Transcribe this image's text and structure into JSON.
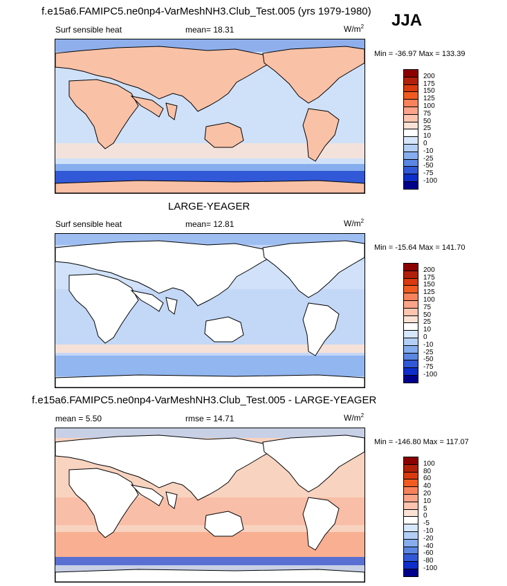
{
  "season": "JJA",
  "panels": [
    {
      "title": "f.e15a6.FAMIPC5.ne0np4-VarMeshNH3.Club_Test.005 (yrs 1979-1980)",
      "left_label": "Surf sensible heat",
      "center_label": "mean=  18.31",
      "units": "W/m",
      "units_sup": "2",
      "minmax": "Min = -36.97 Max = 133.39",
      "colorbar_ticks": [
        "200",
        "175",
        "150",
        "125",
        "100",
        "75",
        "50",
        "25",
        "10",
        "0",
        "-10",
        "-25",
        "-50",
        "-75",
        "-100"
      ],
      "colorbar_colors": [
        "#8b0000",
        "#b0200a",
        "#d93a10",
        "#f05b22",
        "#f8825a",
        "#fba489",
        "#fdc5b0",
        "#fbe2d5",
        "#ffffff",
        "#d6e6fb",
        "#b3cff6",
        "#86aeee",
        "#5b86e2",
        "#3158d6",
        "#0d2ec9",
        "#00008b"
      ],
      "ocean_color": "#cfe1f9",
      "land_color": "#f9c1a6",
      "land_shown": true
    },
    {
      "title": "LARGE-YEAGER",
      "left_label": "Surf sensible heat",
      "center_label": "mean=  12.81",
      "units": "W/m",
      "units_sup": "2",
      "minmax": "Min = -15.64 Max = 141.70",
      "colorbar_ticks": [
        "200",
        "175",
        "150",
        "125",
        "100",
        "75",
        "50",
        "25",
        "10",
        "0",
        "-10",
        "-25",
        "-50",
        "-75",
        "-100"
      ],
      "colorbar_colors": [
        "#8b0000",
        "#b0200a",
        "#d93a10",
        "#f05b22",
        "#f8825a",
        "#fba489",
        "#fdc5b0",
        "#fbe2d5",
        "#ffffff",
        "#d6e6fb",
        "#b3cff6",
        "#86aeee",
        "#5b86e2",
        "#3158d6",
        "#0d2ec9",
        "#00008b"
      ],
      "ocean_color": "#c3d7f6",
      "land_color": "#ffffff",
      "land_shown": false
    },
    {
      "title": "f.e15a6.FAMIPC5.ne0np4-VarMeshNH3.Club_Test.005 - LARGE-YEAGER",
      "left_label": "mean =   5.50",
      "center_label": "rmse =  14.71",
      "units": "W/m",
      "units_sup": "2",
      "minmax": "Min = -146.80 Max = 117.07",
      "colorbar_ticks": [
        "100",
        "80",
        "60",
        "40",
        "20",
        "10",
        "5",
        "0",
        "-5",
        "-10",
        "-20",
        "-40",
        "-60",
        "-80",
        "-100"
      ],
      "colorbar_colors": [
        "#8b0000",
        "#b0200a",
        "#d93a10",
        "#f05b22",
        "#f8825a",
        "#fba489",
        "#fdc5b0",
        "#fbe2d5",
        "#ffffff",
        "#d6e6fb",
        "#b3cff6",
        "#86aeee",
        "#5b86e2",
        "#3158d6",
        "#0d2ec9",
        "#00008b"
      ],
      "ocean_color": "#f8d3c0",
      "land_color": "#ffffff",
      "land_shown": false
    }
  ]
}
